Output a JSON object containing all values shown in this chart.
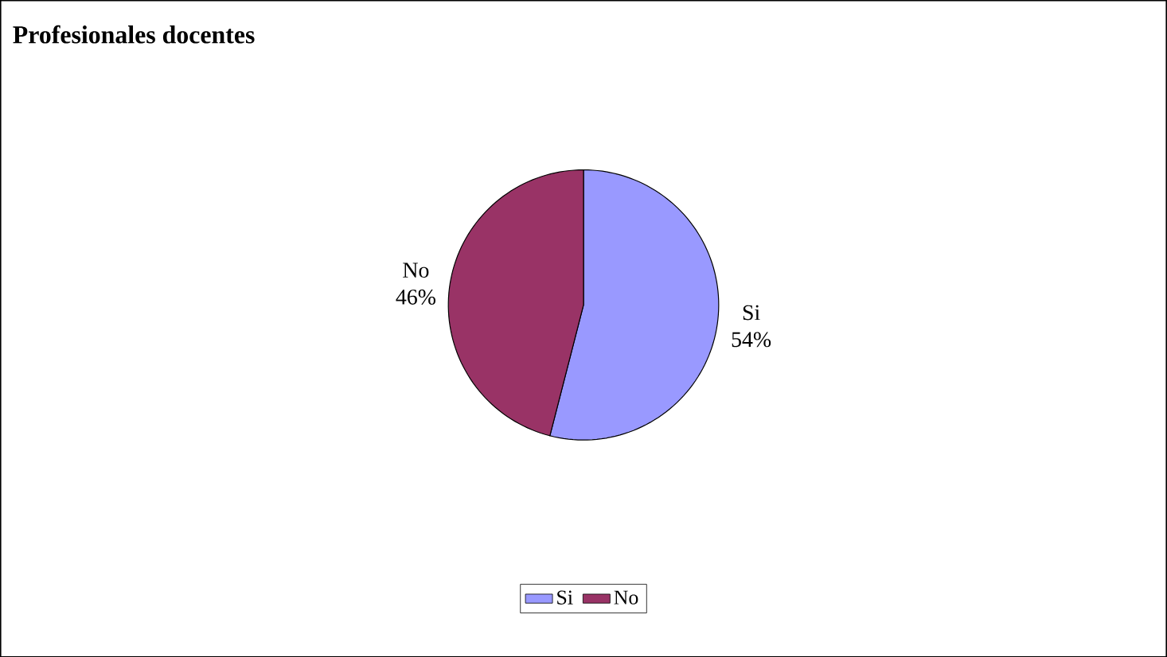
{
  "chart_data": {
    "type": "pie",
    "title": "Profesionales docentes",
    "categories": [
      "Si",
      "No"
    ],
    "values": [
      54,
      46
    ],
    "value_labels": [
      "54%",
      "46%"
    ],
    "colors": [
      "#9999ff",
      "#993366"
    ],
    "legend": "bottom"
  }
}
